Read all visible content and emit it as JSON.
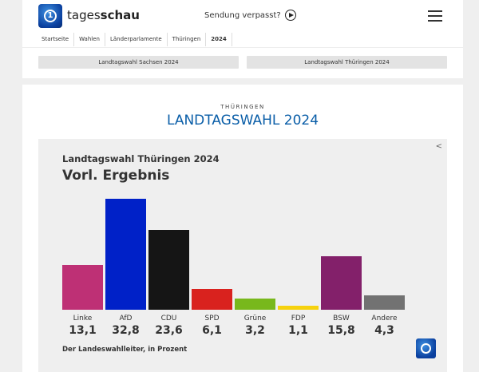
{
  "header": {
    "brand_light": "tages",
    "brand_bold": "schau",
    "missed": "Sendung verpasst?",
    "breadcrumbs": [
      "Startseite",
      "Wahlen",
      "Länderparlamente",
      "Thüringen",
      "2024"
    ],
    "tabs": [
      "Landtagswahl Sachsen 2024",
      "Landtagswahl Thüringen 2024"
    ]
  },
  "main": {
    "kicker": "THÜRINGEN",
    "title": "LANDTAGSWAHL 2024"
  },
  "chart_data": {
    "type": "bar",
    "title": "Landtagswahl Thüringen 2024",
    "subtitle": "Vorl. Ergebnis",
    "categories": [
      "Linke",
      "AfD",
      "CDU",
      "SPD",
      "Grüne",
      "FDP",
      "BSW",
      "Andere"
    ],
    "values": [
      13.1,
      32.8,
      23.6,
      6.1,
      3.2,
      1.1,
      15.8,
      4.3
    ],
    "value_labels": [
      "13,1",
      "32,8",
      "23,6",
      "6,1",
      "3,2",
      "1,1",
      "15,8",
      "4,3"
    ],
    "colors": [
      "#be3075",
      "#0021c8",
      "#151515",
      "#d9221e",
      "#78b81c",
      "#f6d20e",
      "#83206a",
      "#727272"
    ],
    "source": "Der Landeswahlleiter, in Prozent",
    "ylim": [
      0,
      33
    ],
    "grid": false
  }
}
